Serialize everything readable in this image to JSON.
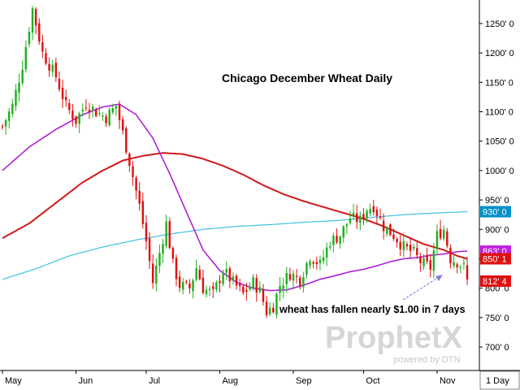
{
  "chart_data": {
    "type": "candlestick",
    "title": "Chicago December Wheat Daily",
    "annotation": "wheat has fallen nearly $1.00 in 7 days",
    "watermark": "ProphetX",
    "watermark_sub": "powered by DTN",
    "interval_label": "1 Day",
    "y_ticks": [
      "1250' 0",
      "1200' 0",
      "1150' 0",
      "1100' 0",
      "1050' 0",
      "1000' 0",
      "950' 0",
      "900' 0",
      "850' 0",
      "800' 0",
      "750' 0",
      "700' 0"
    ],
    "y_tick_values": [
      1250,
      1200,
      1150,
      1100,
      1050,
      1000,
      950,
      900,
      850,
      800,
      750,
      700
    ],
    "ylim": [
      660,
      1290
    ],
    "x_ticks": [
      "May",
      "Jun",
      "Jul",
      "Aug",
      "Sep",
      "Oct",
      "Nov"
    ],
    "x_tick_index": [
      0,
      22,
      43,
      65,
      87,
      108,
      130
    ],
    "total_bars": 140,
    "price_badges": [
      {
        "text": "930' 0",
        "value": 930,
        "color": "#0090c8"
      },
      {
        "text": "863' 0",
        "value": 863,
        "color": "#c020e0"
      },
      {
        "text": "850' 1",
        "value": 850,
        "color": "#e01010"
      },
      {
        "text": "812' 4",
        "value": 812,
        "color": "#e01010"
      }
    ],
    "colors": {
      "up": "#20b020",
      "down": "#e01010",
      "ma_short": "#b020d8",
      "ma_mid": "#d01818",
      "ma_long": "#40c0e0",
      "annotation_arrow": "#8080e0"
    },
    "close_path": [
      [
        0,
        1075
      ],
      [
        3,
        1110
      ],
      [
        6,
        1180
      ],
      [
        9,
        1275
      ],
      [
        12,
        1200
      ],
      [
        16,
        1160
      ],
      [
        19,
        1110
      ],
      [
        22,
        1085
      ],
      [
        25,
        1115
      ],
      [
        28,
        1100
      ],
      [
        31,
        1090
      ],
      [
        34,
        1110
      ],
      [
        37,
        1040
      ],
      [
        39,
        990
      ],
      [
        41,
        940
      ],
      [
        43,
        880
      ],
      [
        45,
        810
      ],
      [
        47,
        860
      ],
      [
        49,
        910
      ],
      [
        51,
        840
      ],
      [
        53,
        805
      ],
      [
        56,
        800
      ],
      [
        58,
        835
      ],
      [
        60,
        800
      ],
      [
        63,
        790
      ],
      [
        66,
        830
      ],
      [
        69,
        810
      ],
      [
        72,
        790
      ],
      [
        75,
        810
      ],
      [
        77,
        795
      ],
      [
        79,
        760
      ],
      [
        81,
        770
      ],
      [
        83,
        805
      ],
      [
        86,
        825
      ],
      [
        89,
        815
      ],
      [
        92,
        855
      ],
      [
        95,
        840
      ],
      [
        98,
        880
      ],
      [
        101,
        890
      ],
      [
        104,
        920
      ],
      [
        107,
        915
      ],
      [
        109,
        935
      ],
      [
        111,
        940
      ],
      [
        114,
        905
      ],
      [
        117,
        890
      ],
      [
        120,
        870
      ],
      [
        123,
        860
      ],
      [
        125,
        845
      ],
      [
        128,
        835
      ],
      [
        130,
        890
      ],
      [
        132,
        900
      ],
      [
        134,
        850
      ],
      [
        136,
        845
      ],
      [
        138,
        835
      ],
      [
        139,
        812
      ]
    ],
    "ma_short": [
      [
        0,
        1000
      ],
      [
        8,
        1040
      ],
      [
        16,
        1070
      ],
      [
        24,
        1095
      ],
      [
        30,
        1108
      ],
      [
        35,
        1113
      ],
      [
        40,
        1095
      ],
      [
        45,
        1055
      ],
      [
        50,
        995
      ],
      [
        55,
        930
      ],
      [
        60,
        865
      ],
      [
        65,
        830
      ],
      [
        70,
        810
      ],
      [
        75,
        800
      ],
      [
        80,
        796
      ],
      [
        85,
        797
      ],
      [
        90,
        805
      ],
      [
        95,
        815
      ],
      [
        100,
        822
      ],
      [
        104,
        828
      ],
      [
        108,
        832
      ],
      [
        112,
        838
      ],
      [
        116,
        845
      ],
      [
        120,
        850
      ],
      [
        124,
        852
      ],
      [
        128,
        856
      ],
      [
        132,
        858
      ],
      [
        136,
        862
      ],
      [
        139,
        863
      ]
    ],
    "ma_mid": [
      [
        0,
        885
      ],
      [
        8,
        910
      ],
      [
        16,
        945
      ],
      [
        24,
        980
      ],
      [
        30,
        1000
      ],
      [
        36,
        1017
      ],
      [
        42,
        1025
      ],
      [
        48,
        1030
      ],
      [
        54,
        1028
      ],
      [
        60,
        1020
      ],
      [
        66,
        1008
      ],
      [
        72,
        993
      ],
      [
        78,
        975
      ],
      [
        84,
        960
      ],
      [
        90,
        948
      ],
      [
        96,
        938
      ],
      [
        102,
        928
      ],
      [
        108,
        918
      ],
      [
        114,
        905
      ],
      [
        120,
        890
      ],
      [
        126,
        875
      ],
      [
        132,
        865
      ],
      [
        136,
        855
      ],
      [
        139,
        850
      ]
    ],
    "ma_long": [
      [
        0,
        815
      ],
      [
        10,
        833
      ],
      [
        20,
        855
      ],
      [
        30,
        870
      ],
      [
        40,
        882
      ],
      [
        50,
        892
      ],
      [
        60,
        900
      ],
      [
        70,
        905
      ],
      [
        80,
        908
      ],
      [
        90,
        912
      ],
      [
        100,
        915
      ],
      [
        110,
        920
      ],
      [
        120,
        925
      ],
      [
        130,
        928
      ],
      [
        139,
        930
      ]
    ]
  }
}
